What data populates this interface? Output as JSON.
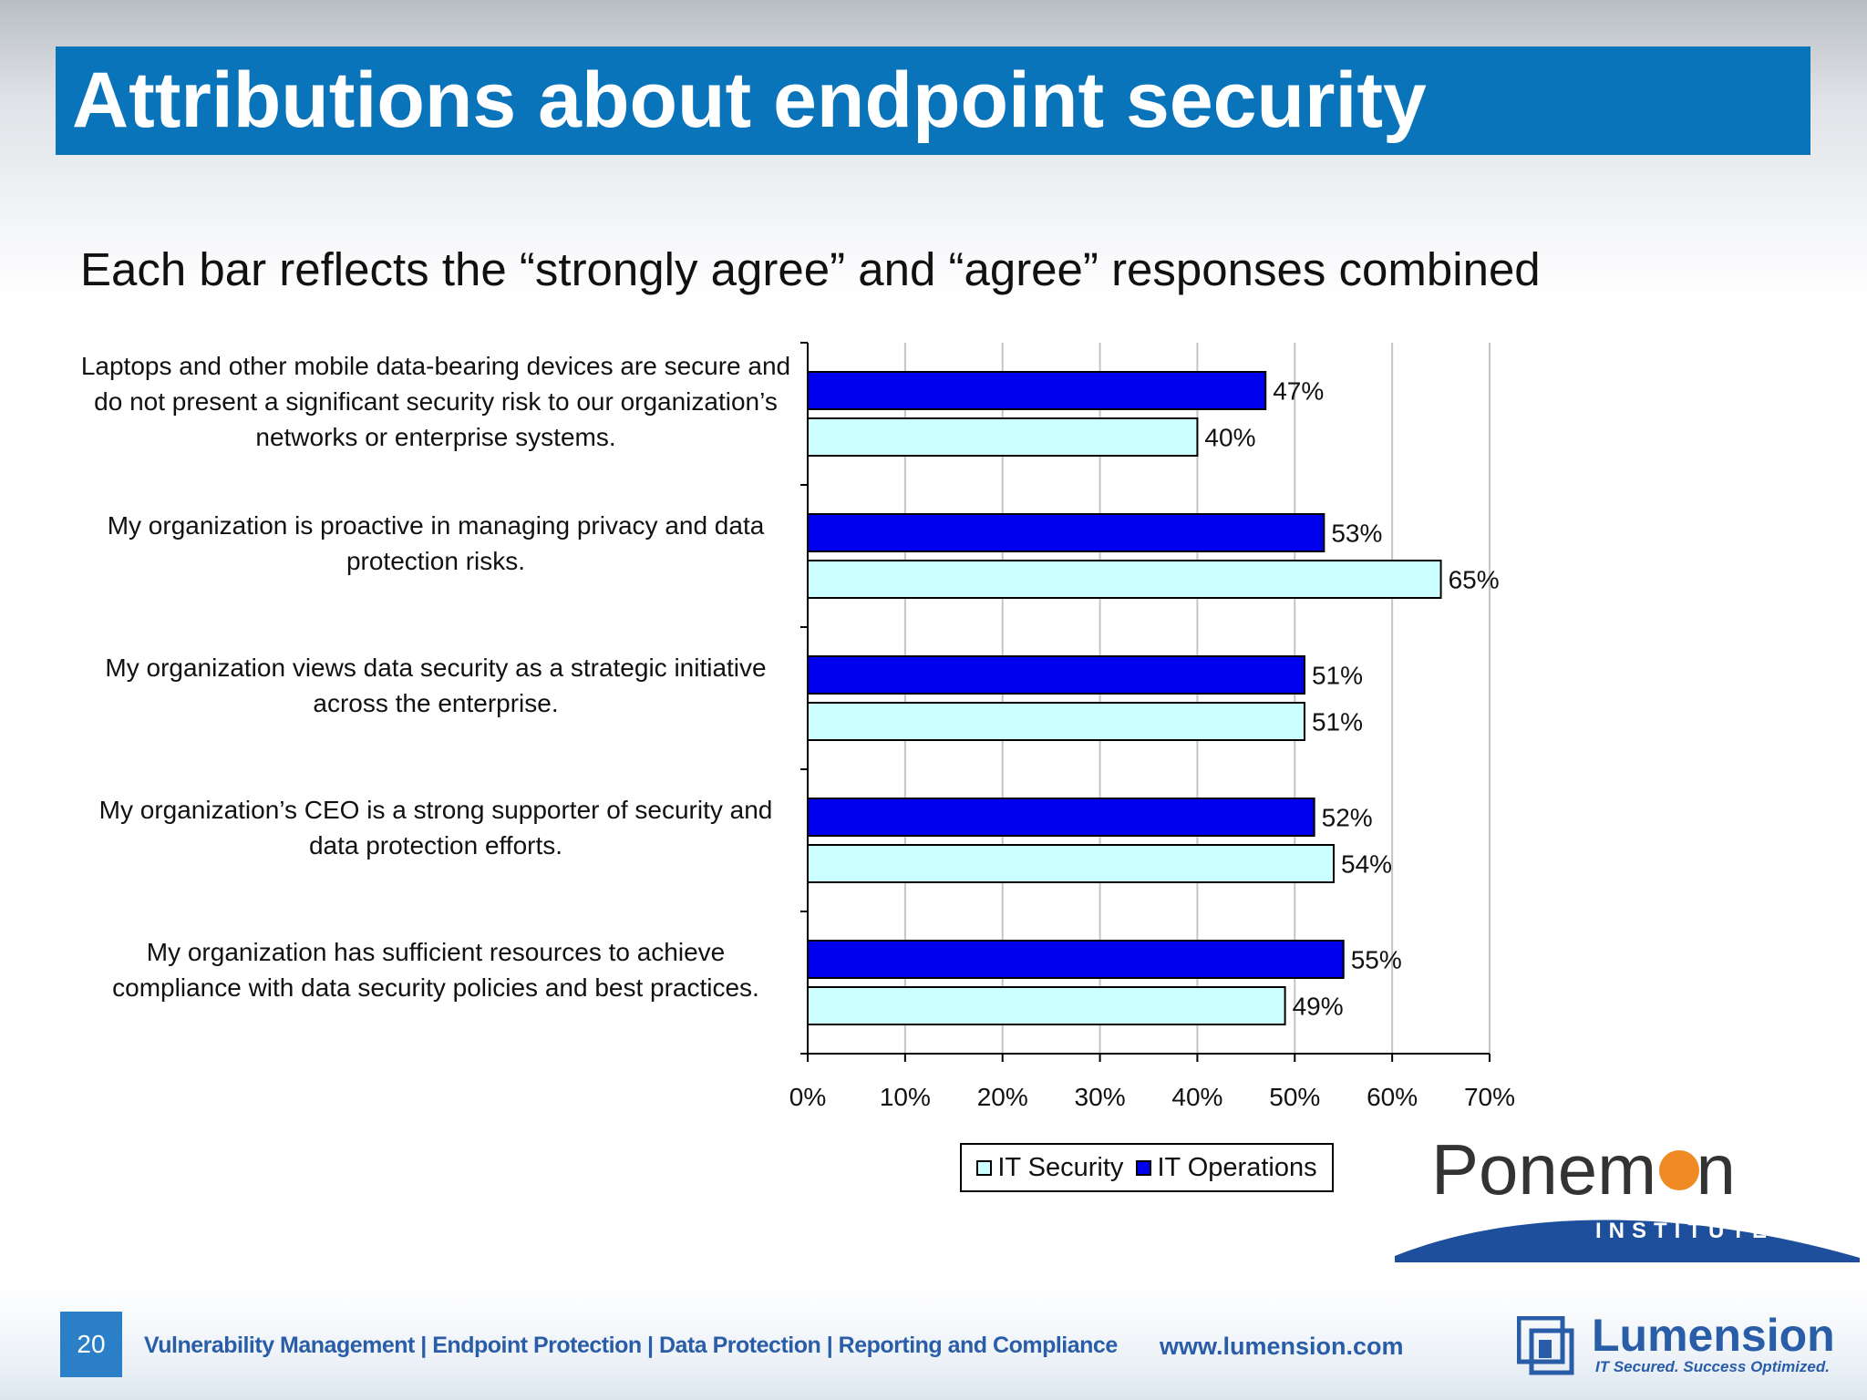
{
  "header": {
    "title": "Attributions about endpoint security"
  },
  "subtitle": "Each bar reflects the “strongly agree” and “agree” responses combined",
  "chart_data": {
    "type": "bar",
    "orientation": "horizontal",
    "categories": [
      "Laptops and other mobile data-bearing devices are secure and do not present a significant security risk to our organization’s networks or enterprise systems.",
      "My organization is proactive in managing privacy and data protection risks.",
      "My organization views data security as a strategic initiative across the enterprise.",
      "My organization’s CEO is a strong supporter of security and data protection efforts.",
      "My organization has sufficient resources to achieve compliance with data security policies and best practices."
    ],
    "series": [
      {
        "name": "IT Operations",
        "color": "#0000ee",
        "values": [
          47,
          53,
          51,
          52,
          55
        ],
        "labels": [
          "47%",
          "53%",
          "51%",
          "52%",
          "55%"
        ]
      },
      {
        "name": "IT Security",
        "color": "#ccffff",
        "values": [
          40,
          65,
          51,
          54,
          49
        ],
        "labels": [
          "40%",
          "65%",
          "51%",
          "54%",
          "49%"
        ]
      }
    ],
    "xlim": [
      0,
      70
    ],
    "xticks": [
      "0%",
      "10%",
      "20%",
      "30%",
      "40%",
      "50%",
      "60%",
      "70%"
    ],
    "grid": true,
    "legend": {
      "position": "bottom",
      "order": [
        "IT Security",
        "IT Operations"
      ]
    }
  },
  "logos": {
    "ponemon": {
      "name_before": "Ponem",
      "name_after": "n",
      "tagline": "INSTITUTE",
      "accent": "#f08a24"
    },
    "lumension": {
      "name": "Lumension",
      "tagline": "IT Secured. Success Optimized."
    }
  },
  "footer": {
    "page_number": "20",
    "links": "Vulnerability Management | Endpoint Protection | Data Protection | Reporting and Compliance",
    "url": "www.lumension.com"
  }
}
